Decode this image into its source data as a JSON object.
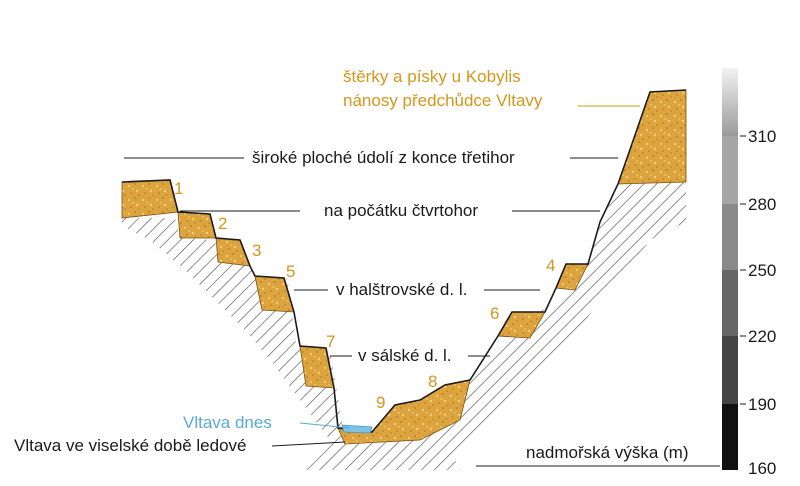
{
  "annotation": {
    "kobylis_line1": "štěrky a písky u Kobylis",
    "kobylis_line2": "nánosy předchůdce Vltavy"
  },
  "labels": {
    "tertiary": "široké ploché údolí z konce třetihor",
    "quaternary_start": "na počátku čtvrtohor",
    "halstrov": "v halštrovské d. l.",
    "sals": "v sálské d. l.",
    "vltava_today": "Vltava dnes",
    "vistula": "Vltava ve viselské době ledové",
    "altitude": "nadmořská výška (m)"
  },
  "terrace_numbers": [
    "1",
    "2",
    "3",
    "5",
    "7",
    "9",
    "8",
    "6",
    "4"
  ],
  "scale": {
    "ticks": [
      "310",
      "280",
      "250",
      "220",
      "190",
      "160"
    ],
    "unit_label": "nadmořská výška (m)"
  },
  "colors": {
    "gravel": "#d9a03c",
    "gravel_dark": "#b47818",
    "accent_text": "#d4961c",
    "water": "#7ec3e6",
    "water_text": "#5aa9d6",
    "hatch": "#555555"
  }
}
